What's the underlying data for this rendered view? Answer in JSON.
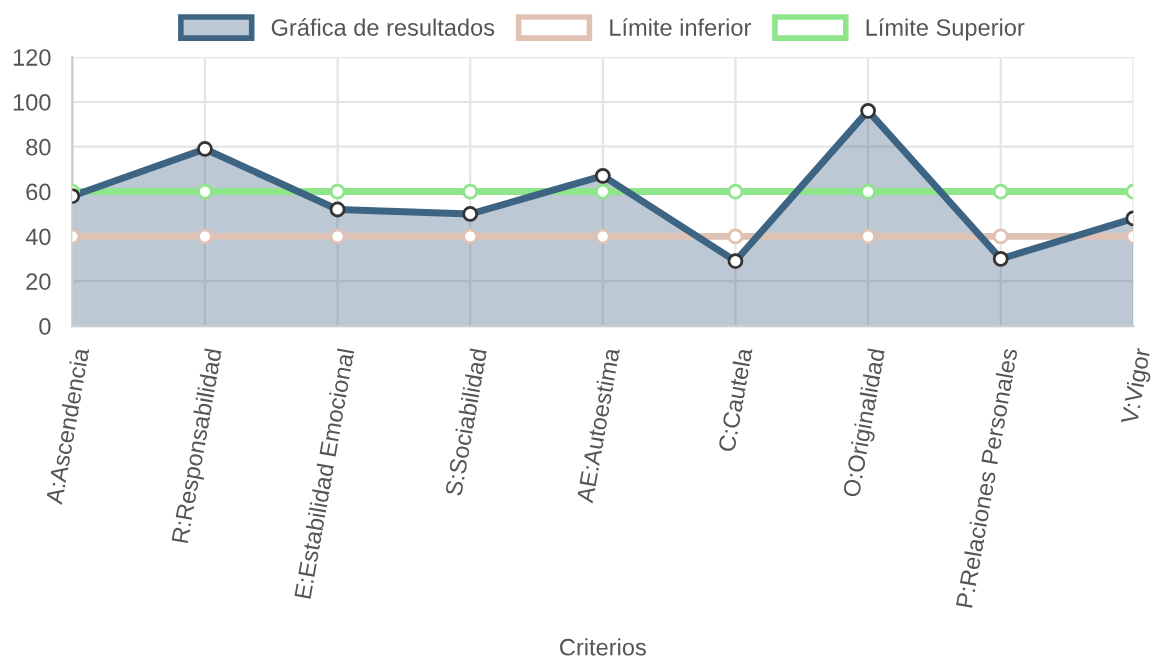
{
  "chart_data": {
    "type": "line",
    "xlabel": "Criterios",
    "categories": [
      "A:Ascendencia",
      "R:Responsabilidad",
      "E:Estabilidad Emocional",
      "S:Sociabilidad",
      "AE:Autoestima",
      "C:Cautela",
      "O:Originalidad",
      "P:Relaciones Personales",
      "V:Vigor"
    ],
    "series": [
      {
        "name": "Gráfica de resultados",
        "type": "area",
        "color": "#3e6484",
        "values": [
          58,
          79,
          52,
          50,
          67,
          29,
          96,
          30,
          48
        ]
      },
      {
        "name": "Límite inferior",
        "color": "#e0c2b4",
        "values": [
          40,
          40,
          40,
          40,
          40,
          40,
          40,
          40,
          40
        ]
      },
      {
        "name": "Límite Superior",
        "color": "#8fe58a",
        "values": [
          60,
          60,
          60,
          60,
          60,
          60,
          60,
          60,
          60
        ]
      }
    ],
    "ylim": [
      0,
      120
    ],
    "yticks": [
      0,
      20,
      40,
      60,
      80,
      100,
      120
    ],
    "grid": true,
    "legend": "top",
    "marker": "circle",
    "line_style": "solid"
  }
}
